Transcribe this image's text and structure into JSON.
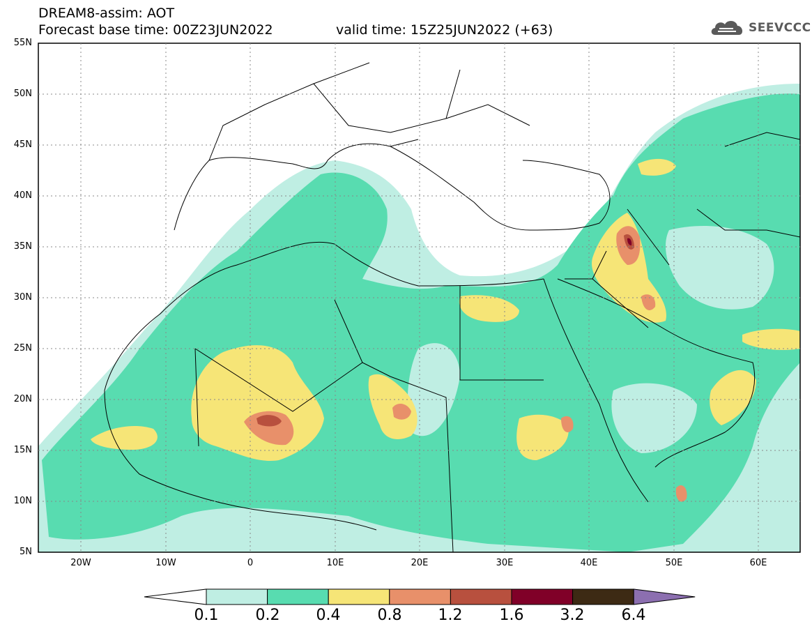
{
  "header": {
    "line1": "DREAM8-assim: AOT",
    "base_time": "Forecast base time: 00Z23JUN2022",
    "valid_time": "valid time: 15Z25JUN2022 (+63)"
  },
  "logo": {
    "text": "SEEVCCC",
    "icon": "cloud-icon"
  },
  "map": {
    "lat_labels": [
      "55N",
      "50N",
      "45N",
      "40N",
      "35N",
      "30N",
      "25N",
      "20N",
      "15N",
      "10N",
      "5N"
    ],
    "lon_labels": [
      "20W",
      "10W",
      "0",
      "10E",
      "20E",
      "30E",
      "40E",
      "50E",
      "60E"
    ]
  },
  "colorbar": {
    "labels": [
      "0.1",
      "0.2",
      "0.4",
      "0.8",
      "1.2",
      "1.6",
      "3.2",
      "6.4"
    ],
    "colors": [
      "#bfeee3",
      "#58dcb0",
      "#f6e577",
      "#e8906a",
      "#b8503e",
      "#800028",
      "#3d2a14",
      "#8c6fb0"
    ]
  }
}
